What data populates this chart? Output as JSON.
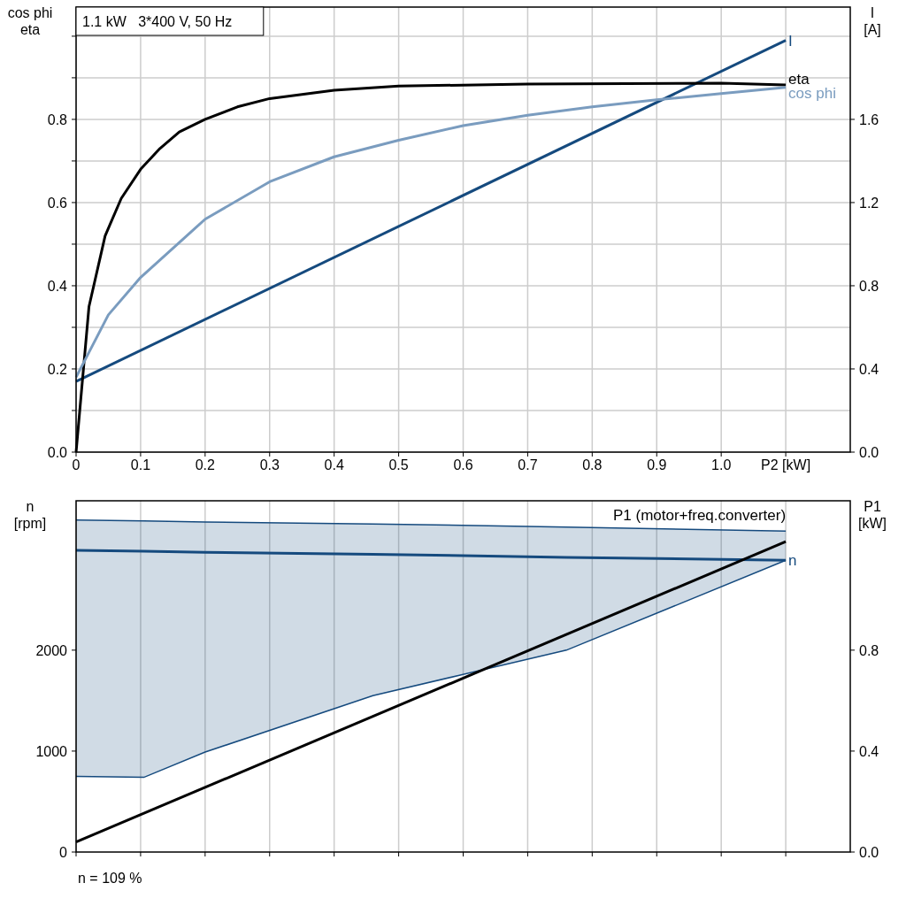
{
  "chart_data": [
    {
      "type": "line",
      "title": "1.1 kW   3*400 V, 50 Hz",
      "ylabel": "cos phi\neta",
      "y2label": "I\n[A]",
      "grid": true,
      "line_style": "solid",
      "xlim": [
        0,
        1.2
      ],
      "xticks": [
        {
          "value": 0,
          "label": "0"
        },
        0.1,
        0.2,
        0.3,
        0.4,
        0.5,
        0.6,
        0.7,
        0.8,
        0.9,
        {
          "value": 1,
          "label": "1.0"
        },
        {
          "value": 1.1,
          "label": "P2 [kW]"
        }
      ],
      "ylim": [
        0,
        1.07
      ],
      "yticks": [
        {
          "value": 0,
          "label": "0.0"
        },
        {
          "value": 0.1,
          "label": null
        },
        0.2,
        {
          "value": 0.3,
          "label": null
        },
        0.4,
        {
          "value": 0.5,
          "label": null
        },
        0.6,
        {
          "value": 0.7,
          "label": null
        },
        0.8,
        {
          "value": 0.9,
          "label": null
        },
        {
          "value": 1,
          "label": null
        }
      ],
      "y2lim": [
        0,
        2.14
      ],
      "y2ticks": [
        {
          "value": 0,
          "label": "0.0"
        },
        0.4,
        0.8,
        1.2,
        1.6
      ],
      "series": [
        {
          "name": "I",
          "color": "#154a7e",
          "axis": "y2",
          "x": [
            0,
            1.1
          ],
          "values": [
            0.34,
            1.98
          ]
        },
        {
          "name": "eta",
          "color": "#000000",
          "x": [
            0,
            0.02,
            0.045,
            0.07,
            0.1,
            0.13,
            0.16,
            0.2,
            0.25,
            0.3,
            0.4,
            0.5,
            0.7,
            1.0,
            1.1
          ],
          "values": [
            0,
            0.35,
            0.52,
            0.61,
            0.68,
            0.73,
            0.77,
            0.8,
            0.83,
            0.85,
            0.87,
            0.88,
            0.885,
            0.887,
            0.883
          ]
        },
        {
          "name": "cos phi",
          "color": "#7a9cbf",
          "x": [
            0,
            0.05,
            0.1,
            0.2,
            0.3,
            0.4,
            0.5,
            0.6,
            0.7,
            0.8,
            0.9,
            1.0,
            1.1
          ],
          "values": [
            0.18,
            0.33,
            0.42,
            0.56,
            0.65,
            0.71,
            0.75,
            0.785,
            0.81,
            0.83,
            0.847,
            0.862,
            0.877
          ]
        }
      ]
    },
    {
      "type": "line",
      "ylabel": "n\n[rpm]",
      "y2label": "P1\n[kW]",
      "grid": "x",
      "tick_labels": "y",
      "line_style": "solid",
      "annotations": [
        "n = 109 %"
      ],
      "xlim": [
        0,
        1.2
      ],
      "xticks": [
        {
          "value": 0,
          "label": null
        },
        {
          "value": 0.1,
          "label": null
        },
        {
          "value": 0.2,
          "label": null
        },
        {
          "value": 0.3,
          "label": null
        },
        {
          "value": 0.4,
          "label": null
        },
        {
          "value": 0.5,
          "label": null
        },
        {
          "value": 0.6,
          "label": null
        },
        {
          "value": 0.7,
          "label": null
        },
        {
          "value": 0.8,
          "label": null
        },
        {
          "value": 0.9,
          "label": null
        },
        {
          "value": 1,
          "label": null
        },
        {
          "value": 1.1,
          "label": null
        }
      ],
      "ylim": [
        0,
        3480
      ],
      "yticks": [
        0,
        1000,
        2000
      ],
      "y2lim": [
        0,
        1.392
      ],
      "y2ticks": [
        {
          "value": 0,
          "label": "0.0"
        },
        0.4,
        0.8
      ],
      "series": [
        {
          "name": "n",
          "color": "#154a7e",
          "x": [
            0,
            0.105,
            0.2,
            0.46,
            0.76,
            1.1
          ],
          "values": [
            2990,
            2980,
            2970,
            2950,
            2920,
            2890
          ],
          "lower": [
            750,
            740,
            990,
            1550,
            2000,
            2890
          ],
          "upper": [
            3290,
            3280,
            3270,
            3250,
            3220,
            3180
          ]
        },
        {
          "name": "P1 (motor+freq.converter)",
          "color": "#000000",
          "axis": "y2",
          "x": [
            0,
            1.1
          ],
          "values": [
            0.04,
            1.23
          ]
        }
      ]
    }
  ]
}
